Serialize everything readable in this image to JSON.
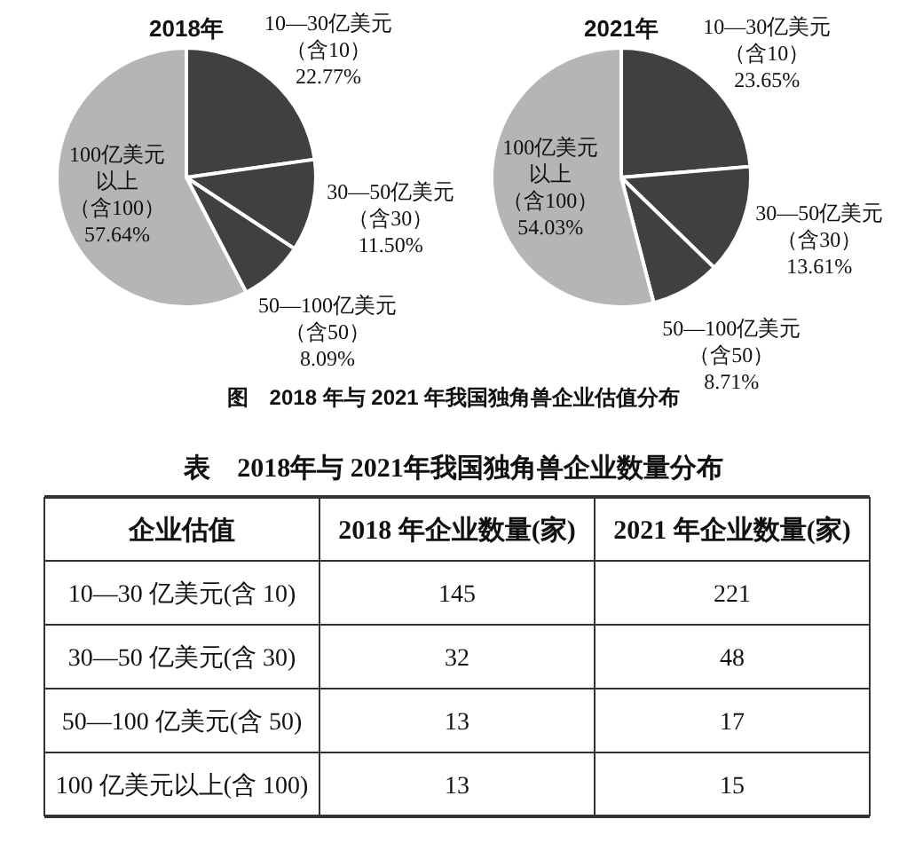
{
  "chart_data": [
    {
      "type": "pie",
      "title": "2018年",
      "categories": [
        "10—30亿美元（含10）",
        "30—50亿美元（含30）",
        "50—100亿美元（含50）",
        "100亿美元以上（含100）"
      ],
      "values": [
        22.77,
        11.5,
        8.09,
        57.64
      ],
      "value_labels": [
        "22.77%",
        "11.50%",
        "8.09%",
        "57.64%"
      ],
      "colors": [
        "#404040",
        "#404040",
        "#404040",
        "#b5b5b5"
      ]
    },
    {
      "type": "pie",
      "title": "2021年",
      "categories": [
        "10—30亿美元（含10）",
        "30—50亿美元（含30）",
        "50—100亿美元（含50）",
        "100亿美元以上（含100）"
      ],
      "values": [
        23.65,
        13.61,
        8.71,
        54.03
      ],
      "value_labels": [
        "23.65%",
        "13.61%",
        "8.71%",
        "54.03%"
      ],
      "colors": [
        "#404040",
        "#404040",
        "#404040",
        "#b5b5b5"
      ],
      "annotations": [
        "图　2018 年与 2021 年我国独角兽企业估值分布"
      ]
    },
    {
      "type": "other",
      "title": "表　2018年与 2021年我国独角兽企业数量分布",
      "ylabel": "企业估值",
      "categories": [
        "10—30 亿美元(含 10)",
        "30—50 亿美元(含 30)",
        "50—100 亿美元(含 50)",
        "100 亿美元以上(含 100)"
      ],
      "series": [
        {
          "name": "2018 年企业数量(家)",
          "values": [
            145,
            32,
            13,
            13
          ]
        },
        {
          "name": "2021 年企业数量(家)",
          "values": [
            221,
            48,
            17,
            15
          ]
        }
      ],
      "data_labels": true
    }
  ]
}
